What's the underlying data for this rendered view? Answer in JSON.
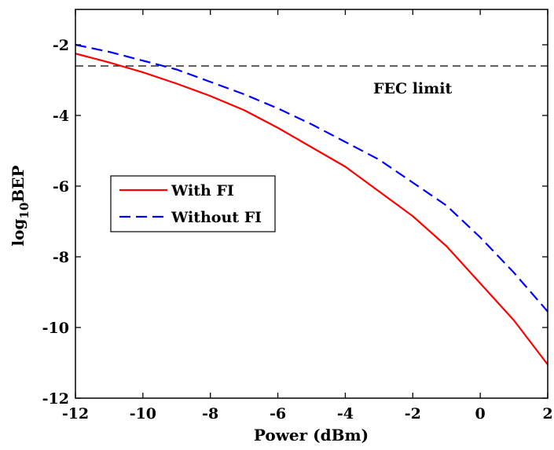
{
  "chart_data": {
    "type": "line",
    "title": "",
    "xlabel": "Power (dBm)",
    "ylabel_base": "log",
    "ylabel_sub": "10",
    "ylabel_tail": "BEP",
    "xlim": [
      -12,
      2
    ],
    "ylim": [
      -12,
      -1
    ],
    "xticks": [
      -12,
      -10,
      -8,
      -6,
      -4,
      -2,
      0,
      2
    ],
    "yticks": [
      -12,
      -10,
      -8,
      -6,
      -4,
      -2
    ],
    "grid": false,
    "legend_position": "middle-left",
    "series": [
      {
        "name": "With FI",
        "color": "#ff0000",
        "style": "solid",
        "x": [
          -12,
          -11,
          -10,
          -9,
          -8,
          -7,
          -6,
          -5,
          -4,
          -3,
          -2,
          -1,
          0,
          1,
          2
        ],
        "y": [
          -2.25,
          -2.5,
          -2.78,
          -3.1,
          -3.45,
          -3.85,
          -4.35,
          -4.9,
          -5.45,
          -6.15,
          -6.85,
          -7.7,
          -8.75,
          -9.8,
          -11.05
        ]
      },
      {
        "name": "Without FI",
        "color": "#0000ff",
        "style": "dashed",
        "x": [
          -12,
          -11,
          -10,
          -9,
          -8,
          -7,
          -6,
          -5,
          -4,
          -3,
          -2,
          -1,
          0,
          1,
          2
        ],
        "y": [
          -2.0,
          -2.2,
          -2.45,
          -2.7,
          -3.05,
          -3.4,
          -3.8,
          -4.25,
          -4.75,
          -5.25,
          -5.9,
          -6.55,
          -7.45,
          -8.45,
          -9.55
        ]
      }
    ],
    "reference_line": {
      "label": "FEC limit",
      "y": -2.6,
      "color": "#000000",
      "style": "dashed"
    }
  }
}
